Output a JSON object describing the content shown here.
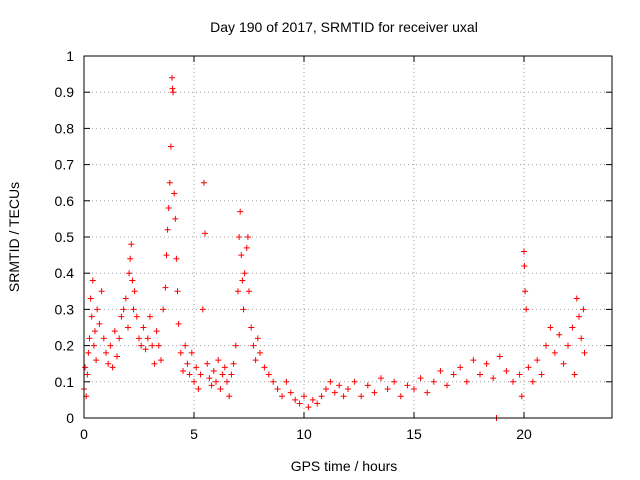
{
  "chart_data": {
    "type": "scatter",
    "title": "Day 190 of 2017, SRMTID for receiver uxal",
    "xlabel": "GPS time / hours",
    "ylabel": "SRMTID / TECUs",
    "xlim": [
      0,
      24
    ],
    "ylim": [
      0,
      1
    ],
    "x_ticks": [
      {
        "value": 0,
        "label": "0"
      },
      {
        "value": 5,
        "label": "5"
      },
      {
        "value": 10,
        "label": "10"
      },
      {
        "value": 15,
        "label": "15"
      },
      {
        "value": 20,
        "label": "20"
      }
    ],
    "y_ticks": [
      {
        "value": 0,
        "label": "0"
      },
      {
        "value": 0.1,
        "label": "0.1"
      },
      {
        "value": 0.2,
        "label": "0.2"
      },
      {
        "value": 0.3,
        "label": "0.3"
      },
      {
        "value": 0.4,
        "label": "0.4"
      },
      {
        "value": 0.5,
        "label": "0.5"
      },
      {
        "value": 0.6,
        "label": "0.6"
      },
      {
        "value": 0.7,
        "label": "0.7"
      },
      {
        "value": 0.8,
        "label": "0.8"
      },
      {
        "value": 0.9,
        "label": "0.9"
      },
      {
        "value": 1,
        "label": "1"
      }
    ],
    "grid": true,
    "marker": "+",
    "series": [
      {
        "name": "SRMTID",
        "color": "#ff0000",
        "points": [
          [
            0.0,
            0.08
          ],
          [
            0.05,
            0.14
          ],
          [
            0.1,
            0.06
          ],
          [
            0.15,
            0.12
          ],
          [
            0.2,
            0.18
          ],
          [
            0.25,
            0.22
          ],
          [
            0.3,
            0.33
          ],
          [
            0.35,
            0.28
          ],
          [
            0.4,
            0.38
          ],
          [
            0.45,
            0.2
          ],
          [
            0.5,
            0.24
          ],
          [
            0.55,
            0.16
          ],
          [
            0.6,
            0.3
          ],
          [
            0.7,
            0.26
          ],
          [
            0.8,
            0.35
          ],
          [
            0.9,
            0.22
          ],
          [
            1.0,
            0.18
          ],
          [
            1.1,
            0.15
          ],
          [
            1.2,
            0.2
          ],
          [
            1.3,
            0.14
          ],
          [
            1.4,
            0.24
          ],
          [
            1.5,
            0.17
          ],
          [
            1.6,
            0.22
          ],
          [
            1.7,
            0.28
          ],
          [
            1.8,
            0.3
          ],
          [
            1.9,
            0.33
          ],
          [
            2.0,
            0.25
          ],
          [
            2.05,
            0.4
          ],
          [
            2.1,
            0.44
          ],
          [
            2.15,
            0.48
          ],
          [
            2.2,
            0.38
          ],
          [
            2.25,
            0.3
          ],
          [
            2.3,
            0.35
          ],
          [
            2.4,
            0.28
          ],
          [
            2.5,
            0.22
          ],
          [
            2.6,
            0.2
          ],
          [
            2.7,
            0.25
          ],
          [
            2.8,
            0.19
          ],
          [
            2.9,
            0.22
          ],
          [
            3.0,
            0.28
          ],
          [
            3.1,
            0.2
          ],
          [
            3.2,
            0.15
          ],
          [
            3.3,
            0.24
          ],
          [
            3.4,
            0.2
          ],
          [
            3.5,
            0.16
          ],
          [
            3.6,
            0.3
          ],
          [
            3.7,
            0.36
          ],
          [
            3.75,
            0.45
          ],
          [
            3.8,
            0.52
          ],
          [
            3.85,
            0.58
          ],
          [
            3.9,
            0.65
          ],
          [
            3.95,
            0.75
          ],
          [
            4.0,
            0.94
          ],
          [
            4.02,
            0.91
          ],
          [
            4.05,
            0.9
          ],
          [
            4.1,
            0.62
          ],
          [
            4.15,
            0.55
          ],
          [
            4.2,
            0.44
          ],
          [
            4.25,
            0.35
          ],
          [
            4.3,
            0.26
          ],
          [
            4.4,
            0.18
          ],
          [
            4.5,
            0.13
          ],
          [
            4.6,
            0.2
          ],
          [
            4.7,
            0.15
          ],
          [
            4.8,
            0.12
          ],
          [
            4.9,
            0.18
          ],
          [
            5.0,
            0.1
          ],
          [
            5.1,
            0.14
          ],
          [
            5.2,
            0.08
          ],
          [
            5.3,
            0.12
          ],
          [
            5.4,
            0.3
          ],
          [
            5.45,
            0.65
          ],
          [
            5.5,
            0.51
          ],
          [
            5.6,
            0.15
          ],
          [
            5.7,
            0.11
          ],
          [
            5.8,
            0.09
          ],
          [
            5.9,
            0.13
          ],
          [
            6.0,
            0.1
          ],
          [
            6.1,
            0.16
          ],
          [
            6.2,
            0.08
          ],
          [
            6.3,
            0.12
          ],
          [
            6.4,
            0.14
          ],
          [
            6.5,
            0.1
          ],
          [
            6.6,
            0.06
          ],
          [
            6.7,
            0.12
          ],
          [
            6.8,
            0.15
          ],
          [
            6.9,
            0.2
          ],
          [
            7.0,
            0.35
          ],
          [
            7.05,
            0.5
          ],
          [
            7.1,
            0.57
          ],
          [
            7.15,
            0.45
          ],
          [
            7.2,
            0.38
          ],
          [
            7.25,
            0.3
          ],
          [
            7.3,
            0.4
          ],
          [
            7.4,
            0.47
          ],
          [
            7.45,
            0.5
          ],
          [
            7.5,
            0.35
          ],
          [
            7.6,
            0.25
          ],
          [
            7.7,
            0.2
          ],
          [
            7.8,
            0.16
          ],
          [
            7.9,
            0.22
          ],
          [
            8.0,
            0.18
          ],
          [
            8.2,
            0.14
          ],
          [
            8.4,
            0.12
          ],
          [
            8.6,
            0.1
          ],
          [
            8.8,
            0.08
          ],
          [
            9.0,
            0.06
          ],
          [
            9.2,
            0.1
          ],
          [
            9.4,
            0.07
          ],
          [
            9.6,
            0.05
          ],
          [
            9.8,
            0.04
          ],
          [
            10.0,
            0.06
          ],
          [
            10.2,
            0.03
          ],
          [
            10.4,
            0.05
          ],
          [
            10.6,
            0.04
          ],
          [
            10.8,
            0.06
          ],
          [
            11.0,
            0.08
          ],
          [
            11.2,
            0.1
          ],
          [
            11.4,
            0.07
          ],
          [
            11.6,
            0.09
          ],
          [
            11.8,
            0.06
          ],
          [
            12.0,
            0.08
          ],
          [
            12.3,
            0.1
          ],
          [
            12.6,
            0.06
          ],
          [
            12.9,
            0.09
          ],
          [
            13.2,
            0.07
          ],
          [
            13.5,
            0.11
          ],
          [
            13.8,
            0.08
          ],
          [
            14.1,
            0.1
          ],
          [
            14.4,
            0.06
          ],
          [
            14.7,
            0.09
          ],
          [
            15.0,
            0.08
          ],
          [
            15.3,
            0.11
          ],
          [
            15.6,
            0.07
          ],
          [
            15.9,
            0.1
          ],
          [
            16.2,
            0.13
          ],
          [
            16.5,
            0.09
          ],
          [
            16.8,
            0.12
          ],
          [
            17.1,
            0.14
          ],
          [
            17.4,
            0.1
          ],
          [
            17.7,
            0.16
          ],
          [
            18.0,
            0.12
          ],
          [
            18.3,
            0.15
          ],
          [
            18.6,
            0.11
          ],
          [
            18.75,
            0.0
          ],
          [
            18.9,
            0.17
          ],
          [
            19.2,
            0.13
          ],
          [
            19.5,
            0.1
          ],
          [
            19.8,
            0.12
          ],
          [
            19.9,
            0.06
          ],
          [
            20.0,
            0.46
          ],
          [
            20.02,
            0.42
          ],
          [
            20.05,
            0.35
          ],
          [
            20.1,
            0.3
          ],
          [
            20.2,
            0.14
          ],
          [
            20.4,
            0.1
          ],
          [
            20.6,
            0.16
          ],
          [
            20.8,
            0.12
          ],
          [
            21.0,
            0.2
          ],
          [
            21.2,
            0.25
          ],
          [
            21.4,
            0.18
          ],
          [
            21.6,
            0.23
          ],
          [
            21.8,
            0.15
          ],
          [
            22.0,
            0.2
          ],
          [
            22.2,
            0.25
          ],
          [
            22.3,
            0.12
          ],
          [
            22.4,
            0.33
          ],
          [
            22.5,
            0.28
          ],
          [
            22.6,
            0.22
          ],
          [
            22.7,
            0.3
          ],
          [
            22.75,
            0.18
          ]
        ]
      }
    ]
  }
}
